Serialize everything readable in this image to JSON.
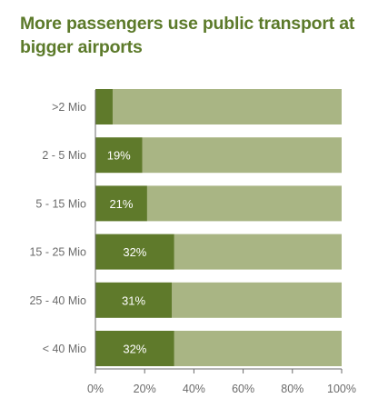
{
  "colors": {
    "title": "#5c7a2a",
    "bar_value": "#5f7a2b",
    "bar_remainder": "#a9b584",
    "axis": "#6b6b6b"
  },
  "chart_data": {
    "type": "bar",
    "orientation": "horizontal",
    "stacked_to_100": true,
    "title": "More passengers use public transport at bigger airports",
    "xlabel": "",
    "ylabel": "",
    "xlim": [
      0,
      100
    ],
    "x_ticks": [
      "0%",
      "20%",
      "40%",
      "60%",
      "80%",
      "100%"
    ],
    "grid": false,
    "categories": [
      ">2 Mio",
      "2 - 5 Mio",
      "5 - 15 Mio",
      "15 - 25 Mio",
      "25 - 40 Mio",
      "< 40 Mio"
    ],
    "values": [
      7,
      19,
      21,
      32,
      31,
      32
    ],
    "value_labels": [
      "",
      "19%",
      "21%",
      "32%",
      "31%",
      "32%"
    ]
  }
}
